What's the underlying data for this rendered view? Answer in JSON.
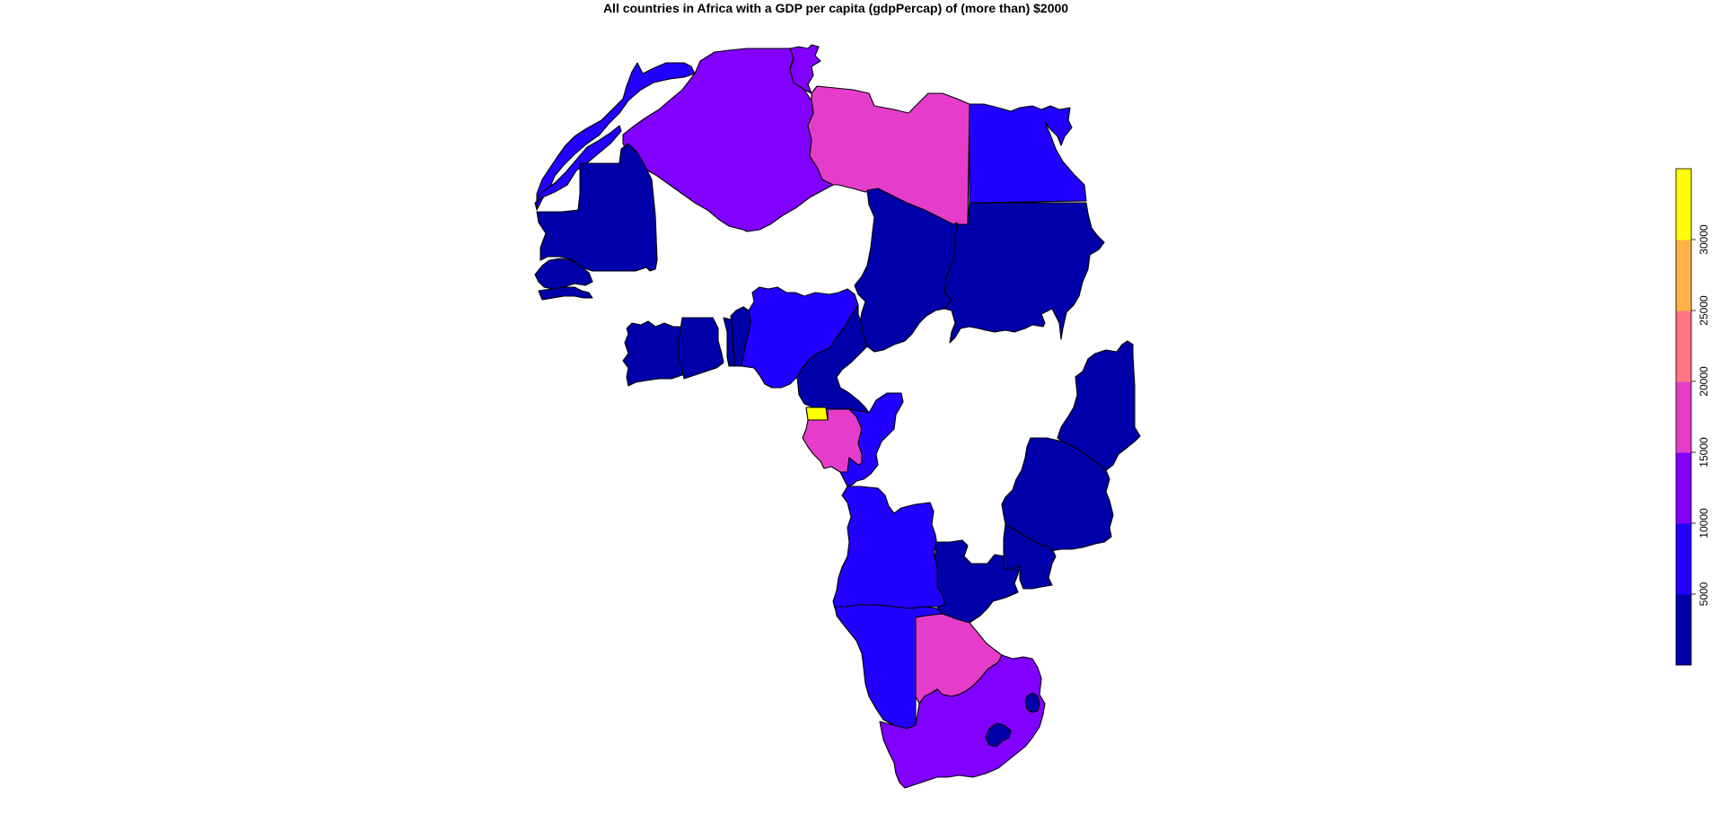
{
  "title": "All countries in Africa with a GDP per capita (gdpPercap) of (more than) $2000",
  "legend": {
    "ticks": [
      "5000",
      "10000",
      "15000",
      "20000",
      "25000",
      "30000"
    ],
    "bins": [
      {
        "color": "#0000AA"
      },
      {
        "color": "#2100FF"
      },
      {
        "color": "#8100FF"
      },
      {
        "color": "#E53DCA"
      },
      {
        "color": "#FF7582"
      },
      {
        "color": "#FFB347"
      },
      {
        "color": "#FFFF00"
      }
    ]
  },
  "countries": [
    {
      "name": "Morocco",
      "color": "#2100FF"
    },
    {
      "name": "Western Sahara",
      "color": "#2100FF"
    },
    {
      "name": "Algeria",
      "color": "#8100FF"
    },
    {
      "name": "Tunisia",
      "color": "#8100FF"
    },
    {
      "name": "Libya",
      "color": "#E53DCA"
    },
    {
      "name": "Egypt",
      "color": "#2100FF"
    },
    {
      "name": "Mauritania",
      "color": "#0000AA"
    },
    {
      "name": "Senegal",
      "color": "#0000AA"
    },
    {
      "name": "Gambia",
      "color": "#0000AA"
    },
    {
      "name": "Chad",
      "color": "#0000AA"
    },
    {
      "name": "Sudan",
      "color": "#0000AA"
    },
    {
      "name": "Cote d'Ivoire",
      "color": "#0000AA"
    },
    {
      "name": "Ghana",
      "color": "#0000AA"
    },
    {
      "name": "Togo",
      "color": "#0000AA"
    },
    {
      "name": "Benin",
      "color": "#0000AA"
    },
    {
      "name": "Nigeria",
      "color": "#2100FF"
    },
    {
      "name": "Cameroon",
      "color": "#0000AA"
    },
    {
      "name": "Equatorial Guinea",
      "color": "#FFFF00"
    },
    {
      "name": "Gabon",
      "color": "#E53DCA"
    },
    {
      "name": "Congo, Rep.",
      "color": "#2100FF"
    },
    {
      "name": "Kenya",
      "color": "#0000AA"
    },
    {
      "name": "Tanzania",
      "color": "#0000AA"
    },
    {
      "name": "Angola",
      "color": "#2100FF"
    },
    {
      "name": "Zambia",
      "color": "#0000AA"
    },
    {
      "name": "Malawi",
      "color": "#0000AA"
    },
    {
      "name": "Namibia",
      "color": "#2100FF"
    },
    {
      "name": "Botswana",
      "color": "#E53DCA"
    },
    {
      "name": "South Africa",
      "color": "#8100FF"
    },
    {
      "name": "Swaziland",
      "color": "#0000AA"
    },
    {
      "name": "Lesotho",
      "color": "#0000AA"
    }
  ]
}
